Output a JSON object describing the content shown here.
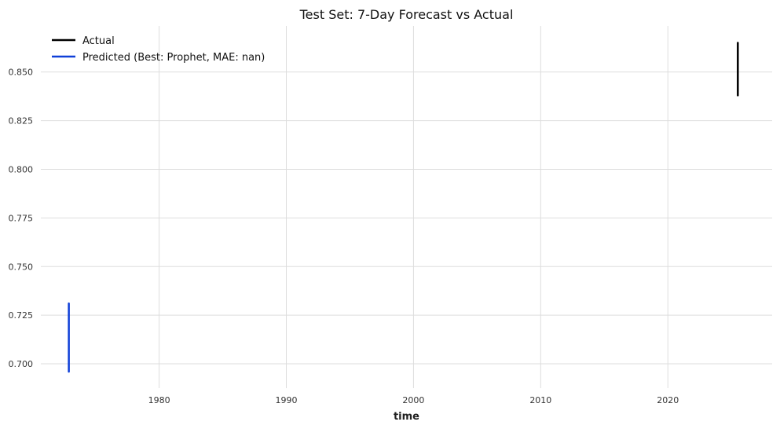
{
  "chart_data": {
    "type": "line",
    "title": "Test Set: 7-Day Forecast vs Actual",
    "xlabel": "time",
    "ylabel": "",
    "x_ticks": [
      1980,
      1990,
      2000,
      2010,
      2020
    ],
    "x_tick_labels": [
      "1980",
      "1990",
      "2000",
      "2010",
      "2020"
    ],
    "y_ticks": [
      0.7,
      0.725,
      0.75,
      0.775,
      0.8,
      0.825,
      0.85
    ],
    "y_tick_labels": [
      "0.700",
      "0.725",
      "0.750",
      "0.775",
      "0.800",
      "0.825",
      "0.850"
    ],
    "xlim": [
      1970.7,
      2028.2
    ],
    "ylim": [
      0.6875,
      0.8737
    ],
    "grid": true,
    "legend_position": "top-left",
    "series": [
      {
        "name": "Actual",
        "color": "#000000",
        "x": [
          2025.5,
          2025.5,
          2025.5,
          2025.5,
          2025.5,
          2025.5,
          2025.5
        ],
        "values": [
          0.865,
          0.861,
          0.855,
          0.85,
          0.849,
          0.843,
          0.838
        ]
      },
      {
        "name": "Predicted (Best: Prophet, MAE: nan)",
        "color": "#0f3fd8",
        "x": [
          1972.9,
          1972.9,
          1972.9,
          1972.9,
          1972.9,
          1972.9,
          1972.9
        ],
        "values": [
          0.731,
          0.725,
          0.718,
          0.712,
          0.706,
          0.701,
          0.696
        ]
      }
    ]
  }
}
